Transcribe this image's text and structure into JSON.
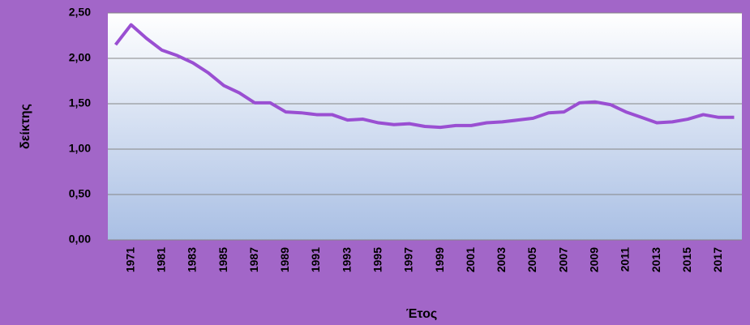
{
  "chart_data": {
    "type": "line",
    "x_label": "Έτος",
    "y_label": "δείκτης",
    "categories": [
      null,
      "1971",
      null,
      "1981",
      null,
      "1983",
      null,
      "1985",
      null,
      "1987",
      null,
      "1989",
      null,
      "1991",
      null,
      "1993",
      null,
      "1995",
      null,
      "1997",
      null,
      "1999",
      null,
      "2001",
      null,
      "2003",
      null,
      "2005",
      null,
      "2007",
      null,
      "2009",
      null,
      "2011",
      null,
      "2013",
      null,
      "2015",
      null,
      "2017",
      null
    ],
    "series": [
      {
        "name": "δείκτης",
        "color": "#9a4fd2",
        "values": [
          2.15,
          2.37,
          2.22,
          2.09,
          2.03,
          1.95,
          1.84,
          1.7,
          1.62,
          1.51,
          1.51,
          1.41,
          1.4,
          1.38,
          1.38,
          1.32,
          1.33,
          1.29,
          1.27,
          1.28,
          1.25,
          1.24,
          1.26,
          1.26,
          1.29,
          1.3,
          1.32,
          1.34,
          1.4,
          1.41,
          1.51,
          1.52,
          1.49,
          1.41,
          1.35,
          1.29,
          1.3,
          1.33,
          1.38,
          1.35,
          1.35
        ]
      }
    ],
    "ylim": [
      0,
      2.5
    ],
    "yticks": [
      {
        "value": 0,
        "label": "0,00"
      },
      {
        "value": 0.5,
        "label": "0,50"
      },
      {
        "value": 1,
        "label": "1,00"
      },
      {
        "value": 1.5,
        "label": "1,50"
      },
      {
        "value": 2,
        "label": "2,00"
      },
      {
        "value": 2.5,
        "label": "2,50"
      }
    ],
    "grid": true
  }
}
